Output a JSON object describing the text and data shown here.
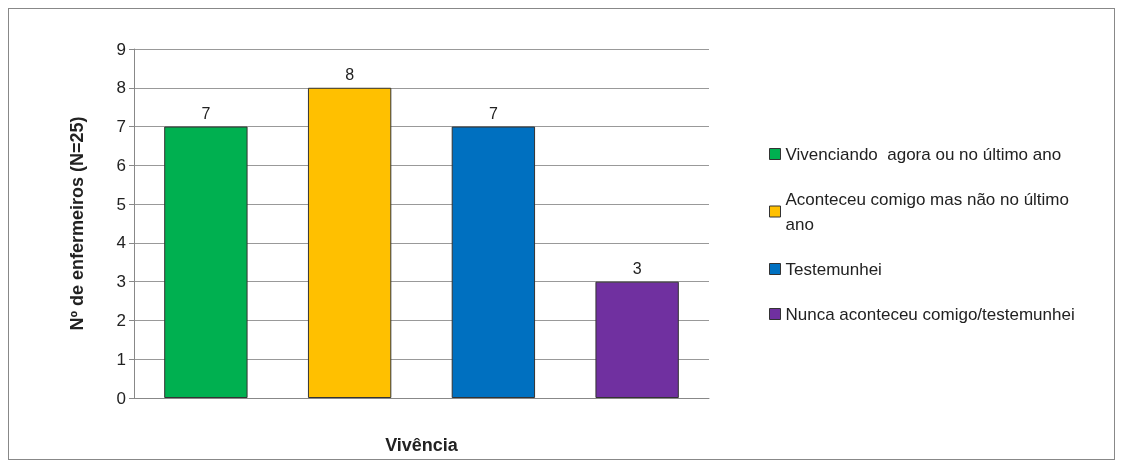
{
  "chart_data": {
    "type": "bar",
    "xlabel": "Vivência",
    "ylabel": "Nº de enfermeiros (N=25)",
    "categories": [
      null,
      null,
      null,
      null
    ],
    "series": [
      {
        "name": "Vivenciando  agora ou no último ano",
        "color": "#00b050",
        "values": [
          7,
          null,
          null,
          null
        ]
      },
      {
        "name": "Aconteceu comigo mas não no último ano",
        "color": "#ffc000",
        "values": [
          null,
          8,
          null,
          null
        ]
      },
      {
        "name": "Testemunhei",
        "color": "#0070c0",
        "values": [
          null,
          null,
          7,
          null
        ]
      },
      {
        "name": "Nunca aconteceu comigo/testemunhei",
        "color": "#7030a0",
        "values": [
          null,
          null,
          null,
          3
        ]
      }
    ],
    "ylim": [
      0,
      9
    ],
    "yticks": [
      0,
      1,
      2,
      3,
      4,
      5,
      6,
      7,
      8,
      9
    ],
    "grid": "y",
    "legend": "right",
    "data_labels": true
  }
}
